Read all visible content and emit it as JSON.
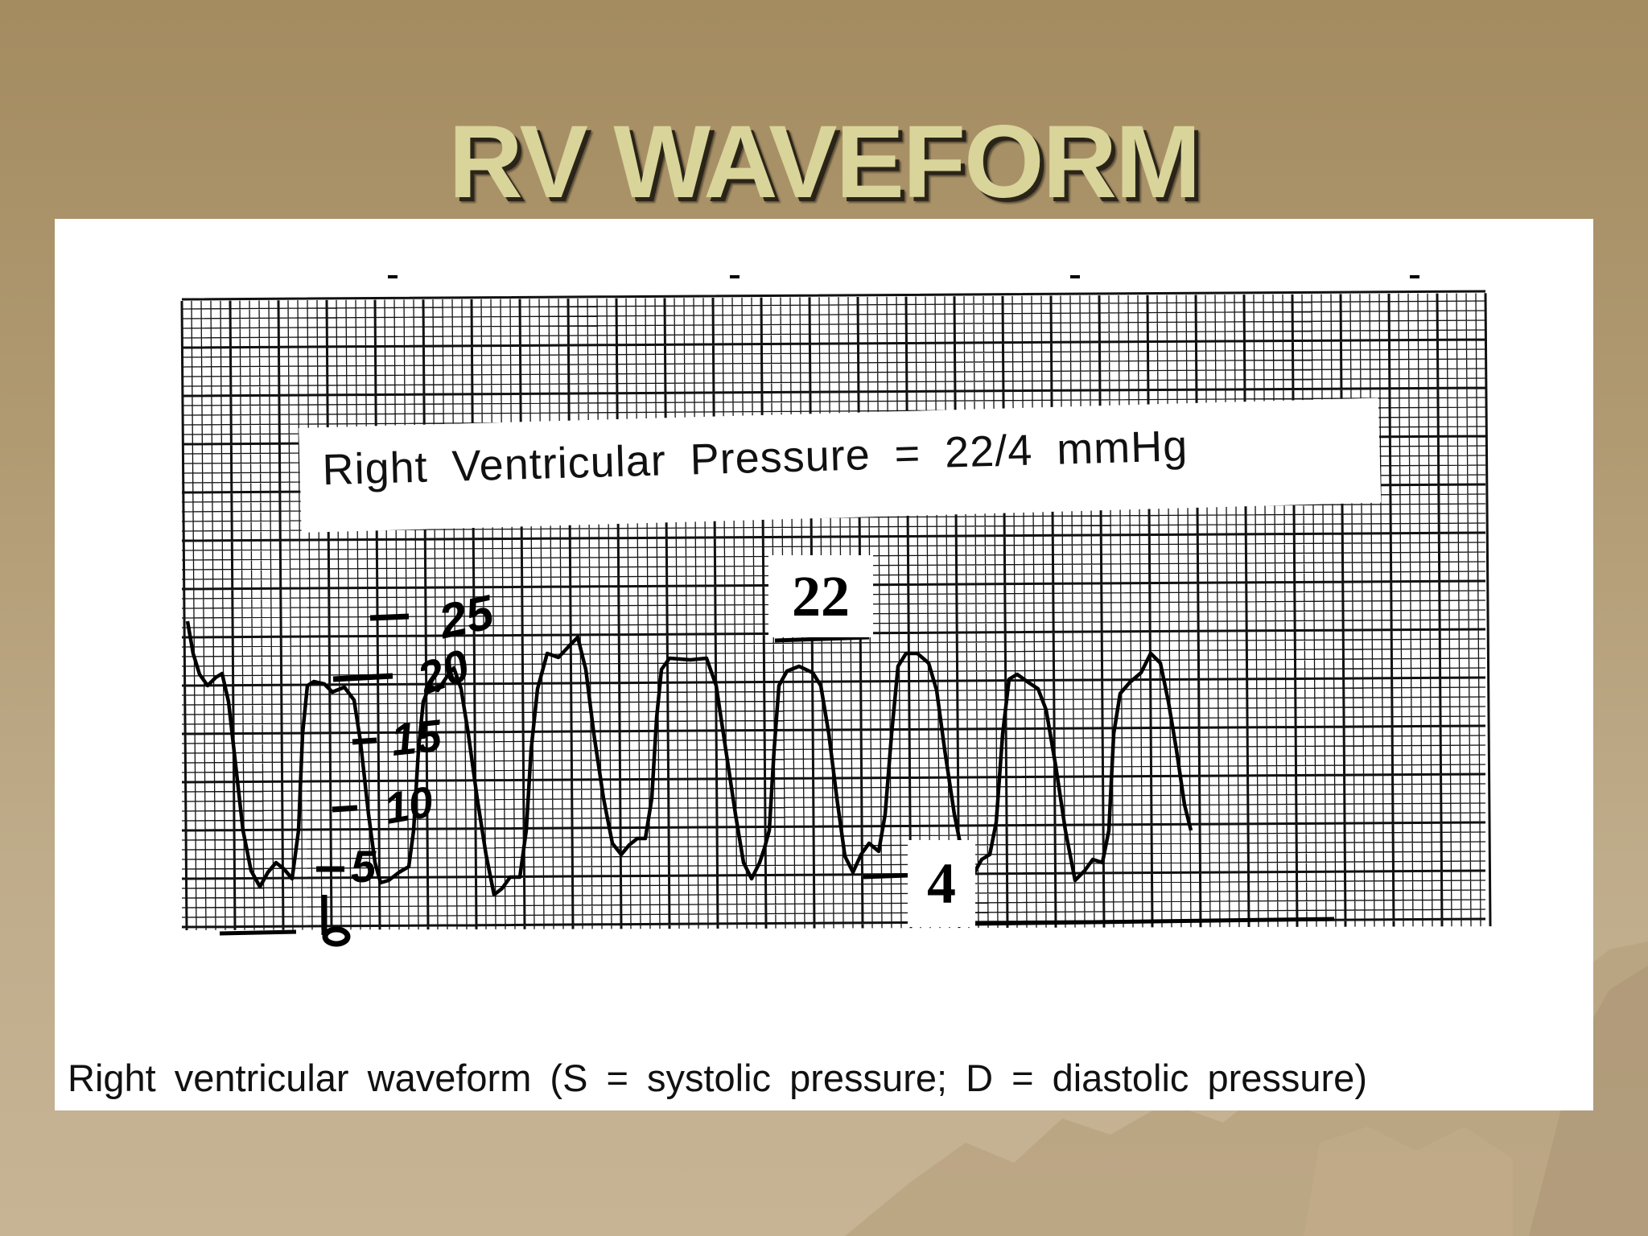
{
  "slide": {
    "title": "RV WAVEFORM",
    "caption": "Right ventricular waveform (S = systolic pressure; D = diastolic pressure)"
  },
  "diagram": {
    "header": "Right Ventricular Pressure = 22/4 mmHg",
    "systolic_label": "22",
    "diastolic_label": "4",
    "scale_labels": [
      "25",
      "20",
      "15",
      "10",
      "5",
      "0"
    ]
  },
  "colors": {
    "background": "#a48b60",
    "title": "#d9d49a",
    "grid": "#111111",
    "trace": "#000000"
  }
}
